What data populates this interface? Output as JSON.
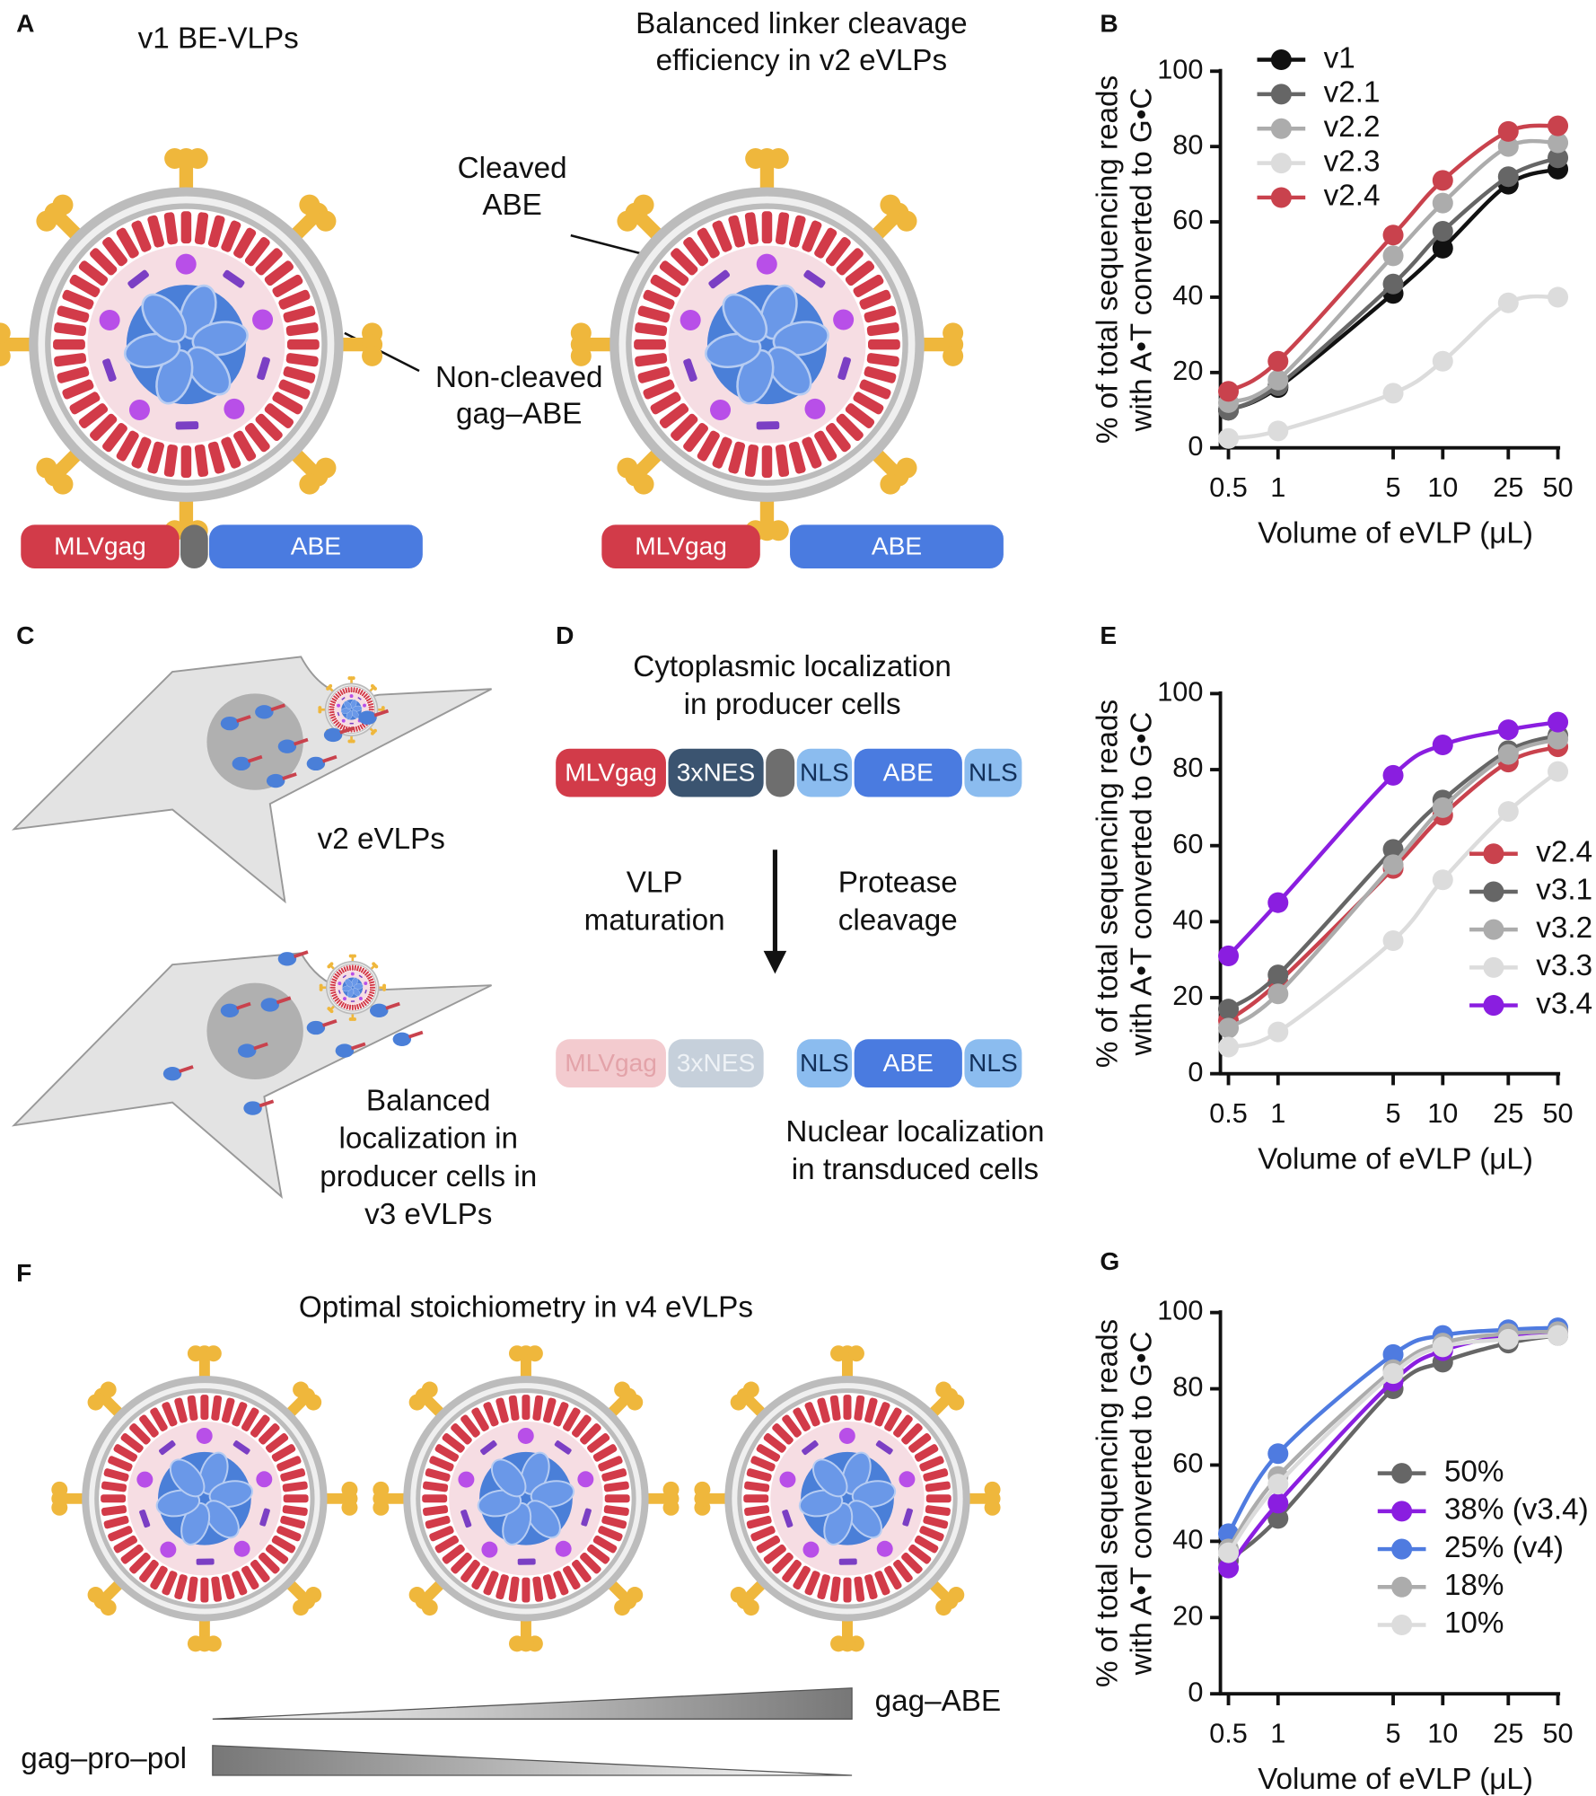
{
  "panels": {
    "A": {
      "label": "A",
      "title_left": [
        "v1 BE-VLPs"
      ],
      "title_right": [
        "Balanced linker cleavage",
        "efficiency in v2 eVLPs"
      ],
      "cleaved": [
        "Cleaved",
        "ABE"
      ],
      "non_cleaved": [
        "Non-cleaved",
        "gag–ABE"
      ],
      "bar_left": [
        "MLVgag",
        "ABE"
      ],
      "bar_right": [
        "MLVgag",
        "ABE"
      ]
    },
    "C": {
      "label": "C",
      "upper": [
        "v2 eVLPs"
      ],
      "lower": [
        "Balanced",
        "localization in",
        "producer cells in",
        "v3 eVLPs"
      ]
    },
    "D": {
      "label": "D",
      "title": [
        "Cytoplasmic localization",
        "in producer cells"
      ],
      "top_bar": [
        "MLVgag",
        "3xNES",
        "NLS",
        "ABE",
        "NLS"
      ],
      "left_step": [
        "VLP",
        "maturation"
      ],
      "right_step": [
        "Protease",
        "cleavage"
      ],
      "bottom_faded": [
        "MLVgag",
        "3xNES"
      ],
      "bottom_bar": [
        "NLS",
        "ABE",
        "NLS"
      ],
      "caption": [
        "Nuclear localization",
        "in transduced cells"
      ]
    },
    "F": {
      "label": "F",
      "title": [
        "Optimal stoichiometry in v4 eVLPs"
      ],
      "increasing": "gag–ABE",
      "decreasing": "gag–pro–pol"
    }
  },
  "chart_data": [
    {
      "type": "line",
      "panel": "B",
      "xlabel": "Volume of eVLP (μL)",
      "ylabel": [
        "% of total sequencing reads",
        "with A•T converted to G•C"
      ],
      "x": [
        0.5,
        1,
        5,
        10,
        25,
        50
      ],
      "xscale": "log",
      "xlim": [
        0.5,
        50
      ],
      "xticks": [
        0.5,
        1,
        5,
        10,
        25,
        50
      ],
      "ylim": [
        0,
        100
      ],
      "yticks": [
        0,
        20,
        40,
        60,
        80,
        100
      ],
      "legend": "upper left",
      "series": [
        {
          "name": "v1",
          "color": "#111111",
          "values": [
            10,
            16,
            41,
            53,
            70,
            74
          ]
        },
        {
          "name": "v2.1",
          "color": "#666666",
          "values": [
            10,
            16.5,
            43.5,
            57.5,
            72,
            77
          ]
        },
        {
          "name": "v2.2",
          "color": "#acacac",
          "values": [
            12,
            18,
            51,
            65,
            80,
            81
          ]
        },
        {
          "name": "v2.3",
          "color": "#dcdcdc",
          "values": [
            2.5,
            4.5,
            14.5,
            23,
            38.5,
            40
          ]
        },
        {
          "name": "v2.4",
          "color": "#c9424d",
          "values": [
            15,
            23,
            56.5,
            71,
            84,
            85.5
          ]
        }
      ]
    },
    {
      "type": "line",
      "panel": "E",
      "xlabel": "Volume of eVLP (μL)",
      "ylabel": [
        "% of total sequencing reads",
        "with A•T converted to G•C"
      ],
      "x": [
        0.5,
        1,
        5,
        10,
        25,
        50
      ],
      "xscale": "log",
      "xlim": [
        0.5,
        50
      ],
      "xticks": [
        0.5,
        1,
        5,
        10,
        25,
        50
      ],
      "ylim": [
        0,
        100
      ],
      "yticks": [
        0,
        20,
        40,
        60,
        80,
        100
      ],
      "legend": "center right",
      "series": [
        {
          "name": "v2.4",
          "color": "#c9424d",
          "values": [
            14,
            24,
            54,
            68,
            82,
            86
          ]
        },
        {
          "name": "v3.1",
          "color": "#666666",
          "values": [
            17,
            26,
            59,
            72,
            85,
            89
          ]
        },
        {
          "name": "v3.2",
          "color": "#acacac",
          "values": [
            12,
            21,
            55,
            70,
            84,
            88
          ]
        },
        {
          "name": "v3.3",
          "color": "#dcdcdc",
          "values": [
            7,
            11,
            35,
            51,
            69,
            79.5
          ]
        },
        {
          "name": "v3.4",
          "color": "#8a1ee0",
          "values": [
            31,
            45,
            78.5,
            86.5,
            90.5,
            92.5
          ]
        }
      ]
    },
    {
      "type": "line",
      "panel": "G",
      "xlabel": "Volume of eVLP (μL)",
      "ylabel": [
        "% of total sequencing reads",
        "with A•T converted to G•C"
      ],
      "x": [
        0.5,
        1,
        5,
        10,
        25,
        50
      ],
      "xscale": "log",
      "xlim": [
        0.5,
        50
      ],
      "xticks": [
        0.5,
        1,
        5,
        10,
        25,
        50
      ],
      "ylim": [
        0,
        100
      ],
      "yticks": [
        0,
        20,
        40,
        60,
        80,
        100
      ],
      "legend": "center right",
      "series": [
        {
          "name": "50%",
          "color": "#666666",
          "values": [
            35,
            46,
            80,
            87,
            92,
            94
          ]
        },
        {
          "name": "38% (v3.4)",
          "color": "#8a1ee0",
          "values": [
            33,
            50,
            82,
            90,
            94,
            95
          ]
        },
        {
          "name": "25% (v4)",
          "color": "#4f7be0",
          "values": [
            42,
            63,
            89,
            94,
            95.5,
            96
          ]
        },
        {
          "name": "18%",
          "color": "#acacac",
          "values": [
            38,
            57,
            85,
            92,
            94.5,
            95
          ]
        },
        {
          "name": "10%",
          "color": "#dcdcdc",
          "values": [
            37,
            55,
            84,
            91,
            93,
            94
          ]
        }
      ]
    }
  ]
}
